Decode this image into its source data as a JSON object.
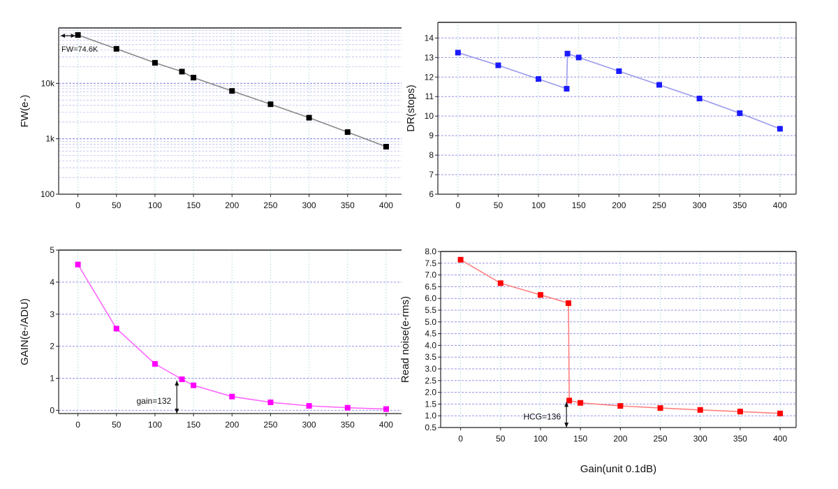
{
  "figure": {
    "shared_xlabel": "Gain(unit 0.1dB)"
  },
  "chart_data": [
    {
      "id": "fw",
      "type": "line",
      "xlabel": "",
      "ylabel": "FW(e-)",
      "yscale": "log",
      "xlim": [
        -25,
        420
      ],
      "ylim": [
        100,
        100000
      ],
      "xticks": [
        0,
        50,
        100,
        150,
        200,
        250,
        300,
        350,
        400
      ],
      "xtick_labels": [
        "0",
        "50",
        "100",
        "150",
        "200",
        "250",
        "300",
        "350",
        "400"
      ],
      "yticks": [
        100,
        1000,
        10000
      ],
      "ytick_labels": [
        "100",
        "1k",
        "10k"
      ],
      "grid": true,
      "color": "#000000",
      "line_color": "#888888",
      "series": [
        {
          "x": [
            0,
            50,
            100,
            135,
            150,
            200,
            250,
            300,
            350,
            400
          ],
          "y": [
            74600,
            42000,
            23500,
            16300,
            12700,
            7300,
            4200,
            2400,
            1320,
            720
          ]
        }
      ],
      "annotations": [
        {
          "text": "FW=74.6K",
          "x": 0,
          "y": 74600
        }
      ]
    },
    {
      "id": "dr",
      "type": "line",
      "xlabel": "",
      "ylabel": "DR(stops)",
      "xlim": [
        -25,
        420
      ],
      "ylim": [
        6,
        14.8
      ],
      "xticks": [
        0,
        50,
        100,
        150,
        200,
        250,
        300,
        350,
        400
      ],
      "xtick_labels": [
        "0",
        "50",
        "100",
        "150",
        "200",
        "250",
        "300",
        "350",
        "400"
      ],
      "yticks": [
        6,
        7,
        8,
        9,
        10,
        11,
        12,
        13,
        14
      ],
      "ytick_labels": [
        "6",
        "7",
        "8",
        "9",
        "10",
        "11",
        "12",
        "13",
        "14"
      ],
      "grid": true,
      "color": "#1a1aff",
      "line_color": "#9999ee",
      "series": [
        {
          "x": [
            0,
            50,
            100,
            135,
            136,
            150,
            200,
            250,
            300,
            350,
            400
          ],
          "y": [
            13.25,
            12.6,
            11.9,
            11.4,
            13.2,
            13.0,
            12.3,
            11.6,
            10.9,
            10.15,
            9.35
          ]
        }
      ]
    },
    {
      "id": "gain",
      "type": "line",
      "xlabel": "",
      "ylabel": "GAIN(e-/ADU)",
      "xlim": [
        -25,
        420
      ],
      "ylim": [
        -0.1,
        5
      ],
      "xticks": [
        0,
        50,
        100,
        150,
        200,
        250,
        300,
        350,
        400
      ],
      "xtick_labels": [
        "0",
        "50",
        "100",
        "150",
        "200",
        "250",
        "300",
        "350",
        "400"
      ],
      "yticks": [
        0,
        1,
        2,
        3,
        4,
        5
      ],
      "ytick_labels": [
        "0",
        "1",
        "2",
        "3",
        "4",
        "5"
      ],
      "grid": true,
      "color": "#ff00ff",
      "line_color": "#ff66ff",
      "series": [
        {
          "x": [
            0,
            50,
            100,
            135,
            150,
            200,
            250,
            300,
            350,
            400
          ],
          "y": [
            4.55,
            2.55,
            1.45,
            0.97,
            0.78,
            0.43,
            0.25,
            0.14,
            0.08,
            0.04
          ]
        }
      ],
      "annotations": [
        {
          "text": "gain=132",
          "x": 132,
          "y": 0.97
        }
      ]
    },
    {
      "id": "noise",
      "type": "line",
      "xlabel": "Gain(unit 0.1dB)",
      "ylabel": "Read noise(e-rms)",
      "xlim": [
        -25,
        420
      ],
      "ylim": [
        0.5,
        8.0
      ],
      "xticks": [
        0,
        50,
        100,
        150,
        200,
        250,
        300,
        350,
        400
      ],
      "xtick_labels": [
        "0",
        "50",
        "100",
        "150",
        "200",
        "250",
        "300",
        "350",
        "400"
      ],
      "yticks": [
        0.5,
        1.0,
        1.5,
        2.0,
        2.5,
        3.0,
        3.5,
        4.0,
        4.5,
        5.0,
        5.5,
        6.0,
        6.5,
        7.0,
        7.5,
        8.0
      ],
      "ytick_labels": [
        "0.5",
        "1.0",
        "1.5",
        "2.0",
        "2.5",
        "3.0",
        "3.5",
        "4.0",
        "4.5",
        "5.0",
        "5.5",
        "6.0",
        "6.5",
        "7.0",
        "7.5",
        "8.0"
      ],
      "grid": true,
      "color": "#ff0000",
      "line_color": "#ff8080",
      "series": [
        {
          "x": [
            0,
            50,
            100,
            135,
            136,
            150,
            200,
            250,
            300,
            350,
            400
          ],
          "y": [
            7.65,
            6.65,
            6.15,
            5.8,
            1.65,
            1.55,
            1.42,
            1.33,
            1.25,
            1.18,
            1.1
          ]
        }
      ],
      "annotations": [
        {
          "text": "HCG=136",
          "x": 136,
          "y": 1.65
        }
      ]
    }
  ]
}
